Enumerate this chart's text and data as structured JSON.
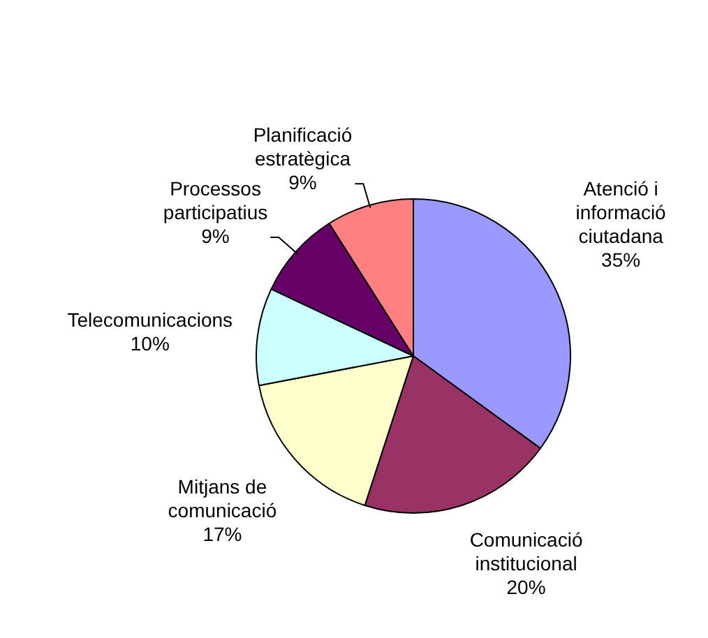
{
  "chart_data": {
    "type": "pie",
    "categories": [
      "Atenció i informació ciutadana",
      "Comunicació institucional",
      "Mitjans de comunicació",
      "Telecomunicacions",
      "Processos participatius",
      "Planificació estratègica"
    ],
    "values": [
      35,
      20,
      17,
      10,
      9,
      9
    ],
    "colors": [
      "#9999ff",
      "#993366",
      "#ffffcc",
      "#ccffff",
      "#660066",
      "#ff8080"
    ],
    "value_labels": [
      "35%",
      "20%",
      "17%",
      "10%",
      "9%",
      "9%"
    ],
    "legend": false
  }
}
